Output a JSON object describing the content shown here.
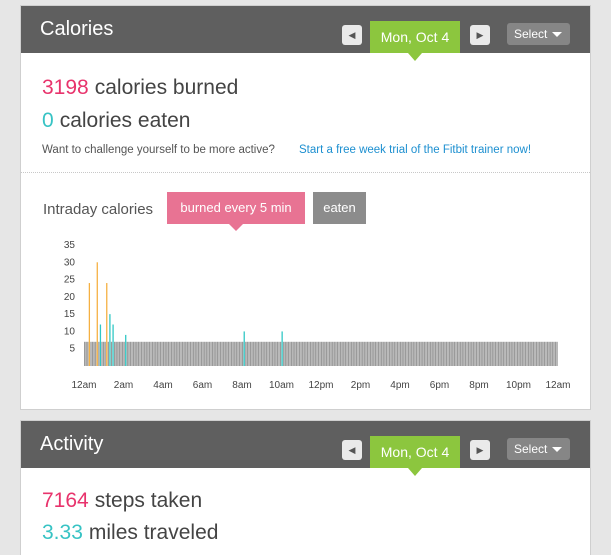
{
  "calories_panel": {
    "title": "Calories",
    "date": "Mon, Oct 4",
    "prev_icon": "triangle-left-icon",
    "next_icon": "triangle-right-icon",
    "select_label": "Select",
    "burned_number": "3198",
    "burned_text": "calories burned",
    "eaten_number": "0",
    "eaten_text": "calories eaten",
    "challenge_text": "Want to challenge yourself to be more active?",
    "challenge_link": "Start a free week trial of the Fitbit trainer now!",
    "intraday_label": "Intraday calories",
    "tab_burned": "burned every 5 min",
    "tab_eaten": "eaten"
  },
  "activity_panel": {
    "title": "Activity",
    "date": "Mon, Oct 4",
    "prev_icon": "triangle-left-icon",
    "next_icon": "triangle-right-icon",
    "select_label": "Select",
    "steps_number": "7164",
    "steps_text": "steps taken",
    "miles_number": "3.33",
    "miles_text": "miles traveled"
  },
  "colors": {
    "header": "#5f5f5f",
    "date_pill": "#8cc63e",
    "burned_accent": "#e8336c",
    "eaten_accent": "#37c3c4",
    "tab_burned": "#e87393",
    "tab_eaten": "#8c8c8c",
    "link": "#1c8fd0"
  },
  "chart_data": {
    "type": "bar",
    "title": "",
    "xlabel": "",
    "ylabel": "",
    "ylim": [
      0,
      35
    ],
    "yticks": [
      5,
      10,
      15,
      20,
      25,
      30,
      35
    ],
    "xticks": [
      "12am",
      "2am",
      "4am",
      "6am",
      "8am",
      "10am",
      "12pm",
      "2pm",
      "4pm",
      "6pm",
      "8pm",
      "10pm",
      "12am"
    ],
    "interval_minutes": 5,
    "series": [
      {
        "color_grey": "#9a9a9a",
        "color_teal": "#2ec7c4",
        "color_orange": "#f5b041",
        "values": [
          7,
          7,
          7,
          24,
          7,
          7,
          7,
          7,
          30,
          7,
          12,
          7,
          7,
          7,
          24,
          7,
          15,
          7,
          12,
          7,
          7,
          7,
          7,
          7,
          7,
          7,
          9,
          7,
          7,
          7,
          7,
          7,
          7,
          7,
          7,
          7,
          7,
          7,
          7,
          7,
          7,
          7,
          7,
          7,
          7,
          7,
          7,
          7,
          7,
          7,
          7,
          7,
          7,
          7,
          7,
          7,
          7,
          7,
          7,
          7,
          7,
          7,
          7,
          7,
          7,
          7,
          7,
          7,
          7,
          7,
          7,
          7,
          7,
          7,
          7,
          7,
          7,
          7,
          7,
          7,
          7,
          7,
          7,
          7,
          7,
          7,
          7,
          7,
          7,
          7,
          7,
          7,
          7,
          7,
          7,
          7,
          7,
          7,
          7,
          7,
          7,
          10,
          7,
          7,
          7,
          7,
          7,
          7,
          7,
          7,
          7,
          7,
          7,
          7,
          7,
          7,
          7,
          7,
          7,
          7,
          7,
          7,
          7,
          7,
          7,
          10,
          7,
          7,
          7,
          7,
          7,
          7,
          7,
          7,
          7,
          7,
          7,
          7,
          7,
          7,
          7,
          7,
          7,
          7,
          7,
          7,
          7,
          7,
          7,
          7,
          7,
          7,
          7,
          7,
          7,
          7,
          7,
          7,
          7,
          7,
          7,
          7,
          7,
          7,
          7,
          7,
          7,
          7,
          7,
          7,
          7,
          7,
          7,
          7,
          7,
          7,
          7,
          7,
          7,
          7,
          7,
          7,
          7,
          7,
          7,
          7,
          7,
          7,
          7,
          7,
          7,
          7,
          7,
          7,
          7,
          7,
          7,
          7,
          7,
          7,
          7,
          7,
          7,
          7,
          7,
          7,
          7,
          7,
          7,
          7,
          7,
          7,
          7,
          7,
          7,
          7,
          7,
          7,
          7,
          7,
          7,
          7,
          7,
          7,
          7,
          7,
          7,
          7,
          7,
          7,
          7,
          7,
          7,
          7,
          7,
          7,
          7,
          7,
          7,
          7,
          7,
          7,
          7,
          7,
          7,
          7,
          7,
          7,
          7,
          7,
          7,
          7,
          7,
          7,
          7,
          7,
          7,
          7,
          7,
          7,
          7,
          7,
          7,
          7,
          7,
          7,
          7,
          7,
          7,
          7,
          7,
          7,
          7,
          7,
          7,
          7,
          7,
          7,
          7,
          7,
          7,
          7,
          7,
          7,
          7,
          7,
          7,
          7,
          7,
          7,
          7,
          7,
          7,
          7,
          7,
          7,
          7,
          7,
          7,
          7
        ]
      }
    ]
  }
}
